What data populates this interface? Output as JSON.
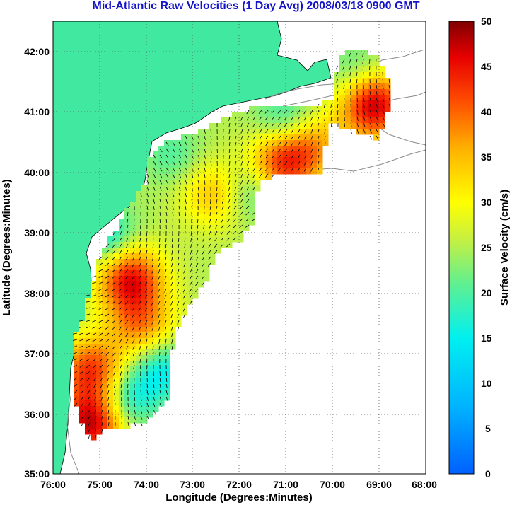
{
  "title": "Mid-Atlantic Raw Velocities (1 Day Avg) 2008/03/18 0900 GMT",
  "map": {
    "x_label": "Longitude (Degrees:Minutes)",
    "y_label": "Latitude (Degrees:Minutes)",
    "lon_ticks": [
      "76:00",
      "75:00",
      "74:00",
      "73:00",
      "72:00",
      "71:00",
      "70:00",
      "69:00",
      "68:00"
    ],
    "lat_ticks": [
      "42:00",
      "41:00",
      "40:00",
      "39:00",
      "38:00",
      "37:00",
      "36:00",
      "35:00"
    ],
    "land_color": "#40e8a0",
    "grid": "dotted"
  },
  "colorbar": {
    "label": "Surface Velocity (cm/s)",
    "ticks": [
      "50",
      "45",
      "40",
      "35",
      "30",
      "25",
      "20",
      "15",
      "10",
      "5",
      "0"
    ],
    "range": [
      0,
      50
    ],
    "colormap": "jet"
  }
}
